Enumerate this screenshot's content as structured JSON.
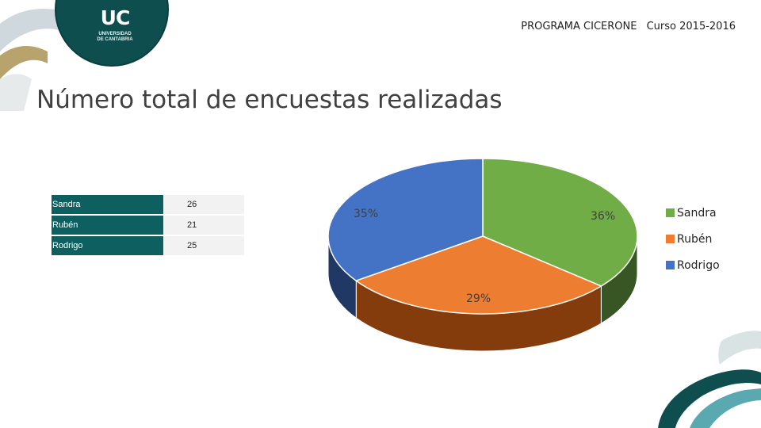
{
  "header": {
    "program": "PROGRAMA CICERONE",
    "course": "Curso 2015-2016"
  },
  "logo": {
    "mark": "UC",
    "line1": "UNIVERSIDAD",
    "line2": "DE CANTABRIA"
  },
  "title": "Número total de encuestas realizadas",
  "chart_data": {
    "type": "pie",
    "title": "",
    "categories": [
      "Sandra",
      "Rubén",
      "Rodrigo"
    ],
    "values": [
      26,
      21,
      25
    ],
    "percent_labels": [
      "36%",
      "29%",
      "35%"
    ],
    "colors": [
      "#70ad47",
      "#ed7d31",
      "#4472c4"
    ],
    "side_colors": [
      "#375623",
      "#843c0c",
      "#203864"
    ],
    "legend_position": "right",
    "table": [
      {
        "name": "Sandra",
        "value": "26"
      },
      {
        "name": "Rubén",
        "value": "21"
      },
      {
        "name": "Rodrigo",
        "value": "25"
      }
    ]
  }
}
